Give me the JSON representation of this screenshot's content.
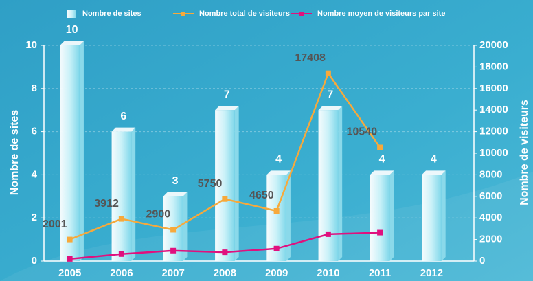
{
  "chart_data": {
    "type": "bar",
    "categories": [
      "2005",
      "2006",
      "2007",
      "2008",
      "2009",
      "2010",
      "2011",
      "2012"
    ],
    "series": [
      {
        "name": "Nombre de sites",
        "type": "bar",
        "color": "#bfeef7",
        "values": [
          10,
          6,
          3,
          7,
          4,
          7,
          4,
          4
        ]
      },
      {
        "name": "Nombre total de visiteurs",
        "type": "line",
        "axis": "y2",
        "color": "#f7a93b",
        "values": [
          2001,
          3912,
          2900,
          5750,
          4650,
          17408,
          10540,
          null
        ]
      },
      {
        "name": "Nombre moyen de visiteurs par site",
        "type": "line",
        "axis": "y2",
        "color": "#e0107e",
        "values": [
          200,
          650,
          970,
          820,
          1160,
          2490,
          2640,
          null
        ]
      }
    ],
    "ylabel": "Nombre de sites",
    "y2label": "Nombre de visiteurs",
    "ylim": [
      0,
      10
    ],
    "yticks": [
      0,
      2,
      4,
      6,
      8,
      10
    ],
    "y2lim": [
      0,
      20000
    ],
    "y2ticks": [
      0,
      2000,
      4000,
      6000,
      8000,
      10000,
      12000,
      14000,
      16000,
      18000,
      20000
    ],
    "grid": true,
    "legend": "top"
  }
}
